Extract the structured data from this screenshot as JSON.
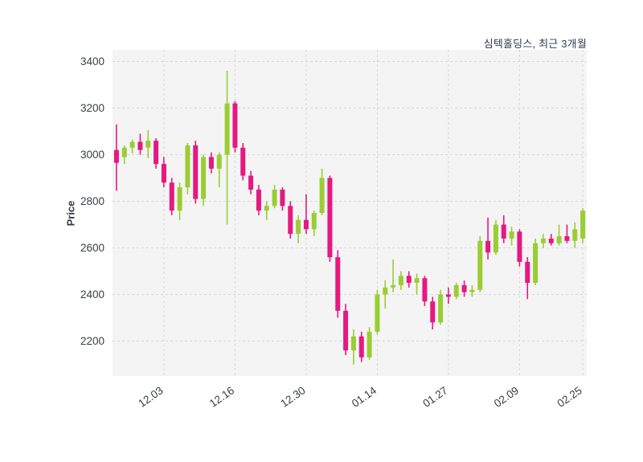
{
  "title": "심텍홀딩스, 최근 3개월",
  "ylabel": "Price",
  "colors": {
    "up": "#9acd32",
    "down": "#e5197f",
    "plot_bg": "#f4f4f5",
    "grid": "#d8d8d8",
    "tick_text": "#3a3f44",
    "title_text": "#2e3b4e"
  },
  "chart_data": {
    "type": "candlestick",
    "title": "심텍홀딩스, 최근 3개월",
    "ylabel": "Price",
    "ylim": [
      2050,
      3450
    ],
    "y_ticks": [
      2200,
      2400,
      2600,
      2800,
      3000,
      3200,
      3400
    ],
    "x_tick_labels": [
      "12.03",
      "12.16",
      "12.30",
      "01.14",
      "01.27",
      "02.09",
      "02.25"
    ],
    "x_tick_indices": [
      6,
      15,
      24,
      33,
      42,
      51,
      59
    ],
    "grid": true,
    "legend": false,
    "ohlc": [
      [
        3020,
        3130,
        2845,
        2965
      ],
      [
        2990,
        3040,
        2960,
        3030
      ],
      [
        3030,
        3065,
        3005,
        3055
      ],
      [
        3055,
        3090,
        3000,
        3020
      ],
      [
        3030,
        3105,
        2985,
        3060
      ],
      [
        3060,
        3070,
        2940,
        2960
      ],
      [
        2960,
        2990,
        2860,
        2880
      ],
      [
        2880,
        2900,
        2740,
        2760
      ],
      [
        2760,
        2880,
        2720,
        2860
      ],
      [
        2860,
        3050,
        2830,
        3040
      ],
      [
        3040,
        3060,
        2790,
        2810
      ],
      [
        2810,
        3000,
        2780,
        2990
      ],
      [
        2990,
        3010,
        2920,
        2940
      ],
      [
        2940,
        3010,
        2860,
        3000
      ],
      [
        3000,
        3360,
        2700,
        3220
      ],
      [
        3220,
        3230,
        3010,
        3030
      ],
      [
        3030,
        3050,
        2890,
        2910
      ],
      [
        2910,
        2930,
        2830,
        2850
      ],
      [
        2850,
        2870,
        2740,
        2760
      ],
      [
        2760,
        2800,
        2720,
        2780
      ],
      [
        2780,
        2870,
        2770,
        2850
      ],
      [
        2850,
        2860,
        2760,
        2780
      ],
      [
        2780,
        2800,
        2640,
        2660
      ],
      [
        2660,
        2740,
        2620,
        2720
      ],
      [
        2720,
        2830,
        2660,
        2680
      ],
      [
        2680,
        2760,
        2650,
        2750
      ],
      [
        2750,
        2940,
        2740,
        2900
      ],
      [
        2900,
        2910,
        2540,
        2560
      ],
      [
        2560,
        2590,
        2300,
        2330
      ],
      [
        2330,
        2360,
        2140,
        2160
      ],
      [
        2160,
        2250,
        2100,
        2220
      ],
      [
        2220,
        2240,
        2110,
        2130
      ],
      [
        2130,
        2260,
        2120,
        2240
      ],
      [
        2240,
        2420,
        2230,
        2400
      ],
      [
        2400,
        2460,
        2340,
        2430
      ],
      [
        2430,
        2550,
        2410,
        2440
      ],
      [
        2440,
        2500,
        2420,
        2480
      ],
      [
        2480,
        2500,
        2430,
        2450
      ],
      [
        2450,
        2490,
        2400,
        2470
      ],
      [
        2470,
        2480,
        2350,
        2370
      ],
      [
        2370,
        2390,
        2250,
        2280
      ],
      [
        2280,
        2420,
        2270,
        2400
      ],
      [
        2400,
        2430,
        2360,
        2390
      ],
      [
        2390,
        2450,
        2380,
        2440
      ],
      [
        2440,
        2460,
        2390,
        2410
      ],
      [
        2410,
        2440,
        2390,
        2420
      ],
      [
        2420,
        2650,
        2410,
        2630
      ],
      [
        2630,
        2730,
        2550,
        2580
      ],
      [
        2580,
        2720,
        2570,
        2700
      ],
      [
        2700,
        2740,
        2620,
        2640
      ],
      [
        2640,
        2690,
        2610,
        2670
      ],
      [
        2670,
        2680,
        2520,
        2540
      ],
      [
        2540,
        2560,
        2380,
        2450
      ],
      [
        2450,
        2640,
        2440,
        2620
      ],
      [
        2620,
        2660,
        2600,
        2640
      ],
      [
        2640,
        2660,
        2610,
        2620
      ],
      [
        2620,
        2700,
        2610,
        2650
      ],
      [
        2650,
        2700,
        2620,
        2630
      ],
      [
        2630,
        2710,
        2600,
        2680
      ],
      [
        2640,
        2770,
        2620,
        2760
      ]
    ]
  }
}
